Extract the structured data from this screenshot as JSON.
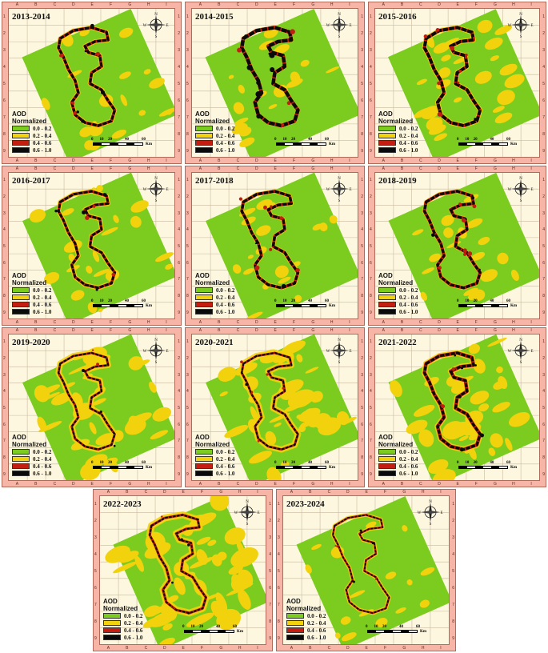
{
  "legend": {
    "title_line1": "AOD",
    "title_line2": "Normalized",
    "classes": [
      {
        "label": "0.0 - 0.2",
        "color": "#7ccc1f"
      },
      {
        "label": "0.2 - 0.4",
        "color": "#f2d20c"
      },
      {
        "label": "0.4 - 0.6",
        "color": "#c41e12"
      },
      {
        "label": "0.6 - 1.0",
        "color": "#0a0a0a"
      }
    ]
  },
  "compass": {
    "n": "N",
    "s": "S",
    "e": "E",
    "w": "W"
  },
  "scale_bar": {
    "ticks": [
      "0",
      "10",
      "20",
      "40",
      "60"
    ],
    "unit": "Km"
  },
  "grid_letters": [
    "A",
    "B",
    "C",
    "D",
    "E",
    "F",
    "G",
    "H",
    "I"
  ],
  "grid_numbers": [
    "1",
    "2",
    "3",
    "4",
    "5",
    "6",
    "7",
    "8",
    "9"
  ],
  "panels": [
    {
      "year": "2013-2014",
      "dark": 0.55,
      "red": 0.3,
      "yellow": 0.25
    },
    {
      "year": "2014-2015",
      "dark": 0.85,
      "red": 0.45,
      "yellow": 0.2
    },
    {
      "year": "2015-2016",
      "dark": 0.75,
      "red": 0.35,
      "yellow": 0.35
    },
    {
      "year": "2016-2017",
      "dark": 0.5,
      "red": 0.25,
      "yellow": 0.3
    },
    {
      "year": "2017-2018",
      "dark": 0.6,
      "red": 0.3,
      "yellow": 0.2
    },
    {
      "year": "2018-2019",
      "dark": 0.55,
      "red": 0.35,
      "yellow": 0.2
    },
    {
      "year": "2019-2020",
      "dark": 0.3,
      "red": 0.15,
      "yellow": 0.6
    },
    {
      "year": "2020-2021",
      "dark": 0.3,
      "red": 0.15,
      "yellow": 0.65
    },
    {
      "year": "2021-2022",
      "dark": 0.55,
      "red": 0.4,
      "yellow": 0.55
    },
    {
      "year": "2022-2023",
      "dark": 0.25,
      "red": 0.2,
      "yellow": 0.8
    },
    {
      "year": "2023-2024",
      "dark": 0.2,
      "red": 0.1,
      "yellow": 0.15
    }
  ]
}
